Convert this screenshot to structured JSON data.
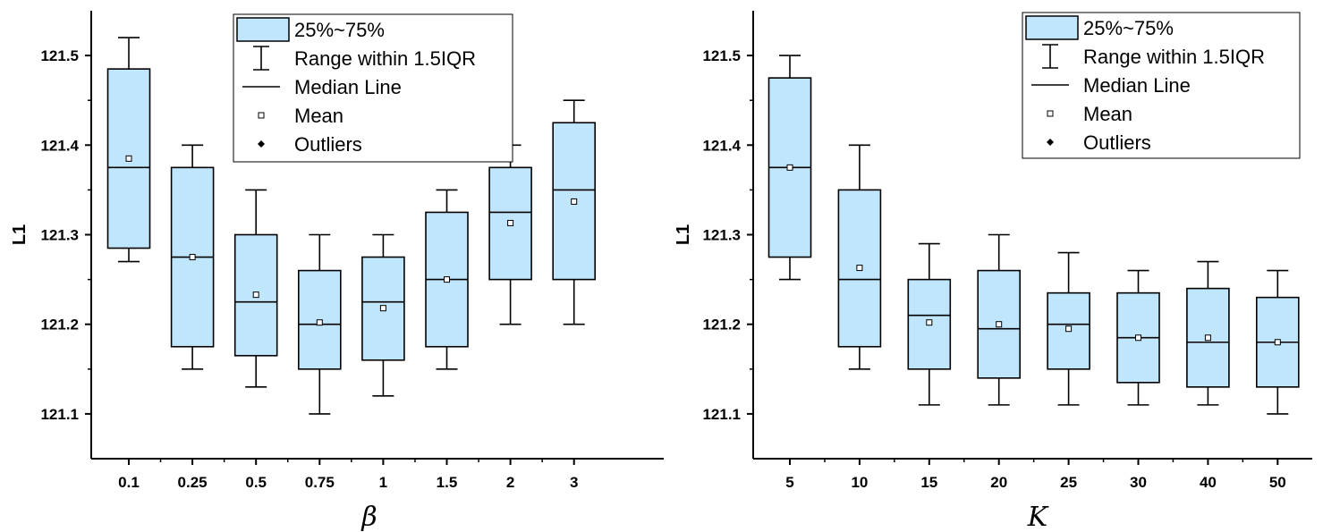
{
  "colors": {
    "box_fill": "#bfe6fd",
    "stroke": "#000000",
    "background": "#ffffff"
  },
  "chart_data": [
    {
      "type": "box",
      "title": "",
      "xlabel": "β",
      "ylabel": "L1",
      "ylim": [
        121.05,
        121.55
      ],
      "yticks": [
        121.1,
        121.2,
        121.3,
        121.4,
        121.5
      ],
      "ytick_labels": [
        "121.1",
        "121.2",
        "121.3",
        "121.4",
        "121.5"
      ],
      "categories": [
        "0.1",
        "0.25",
        "0.5",
        "0.75",
        "1",
        "1.5",
        "2",
        "3"
      ],
      "boxes": [
        {
          "whisker_low": 121.27,
          "q1": 121.285,
          "median": 121.375,
          "q3": 121.485,
          "whisker_high": 121.52,
          "mean": 121.385
        },
        {
          "whisker_low": 121.15,
          "q1": 121.175,
          "median": 121.275,
          "q3": 121.375,
          "whisker_high": 121.4,
          "mean": 121.275
        },
        {
          "whisker_low": 121.13,
          "q1": 121.165,
          "median": 121.225,
          "q3": 121.3,
          "whisker_high": 121.35,
          "mean": 121.233
        },
        {
          "whisker_low": 121.1,
          "q1": 121.15,
          "median": 121.2,
          "q3": 121.26,
          "whisker_high": 121.3,
          "mean": 121.202
        },
        {
          "whisker_low": 121.12,
          "q1": 121.16,
          "median": 121.225,
          "q3": 121.275,
          "whisker_high": 121.3,
          "mean": 121.218
        },
        {
          "whisker_low": 121.15,
          "q1": 121.175,
          "median": 121.25,
          "q3": 121.325,
          "whisker_high": 121.35,
          "mean": 121.25
        },
        {
          "whisker_low": 121.2,
          "q1": 121.25,
          "median": 121.325,
          "q3": 121.375,
          "whisker_high": 121.4,
          "mean": 121.313
        },
        {
          "whisker_low": 121.2,
          "q1": 121.25,
          "median": 121.35,
          "q3": 121.425,
          "whisker_high": 121.45,
          "mean": 121.337
        }
      ],
      "legend": {
        "placement": "top-right",
        "entries": [
          "25%~75%",
          "Range within 1.5IQR",
          "Median Line",
          "Mean",
          "Outliers"
        ]
      }
    },
    {
      "type": "box",
      "title": "",
      "xlabel": "K",
      "ylabel": "L1",
      "ylim": [
        121.05,
        121.55
      ],
      "yticks": [
        121.1,
        121.2,
        121.3,
        121.4,
        121.5
      ],
      "ytick_labels": [
        "121.1",
        "121.2",
        "121.3",
        "121.4",
        "121.5"
      ],
      "categories": [
        "5",
        "10",
        "15",
        "20",
        "25",
        "30",
        "40",
        "50"
      ],
      "boxes": [
        {
          "whisker_low": 121.25,
          "q1": 121.275,
          "median": 121.375,
          "q3": 121.475,
          "whisker_high": 121.5,
          "mean": 121.375
        },
        {
          "whisker_low": 121.15,
          "q1": 121.175,
          "median": 121.25,
          "q3": 121.35,
          "whisker_high": 121.4,
          "mean": 121.263
        },
        {
          "whisker_low": 121.11,
          "q1": 121.15,
          "median": 121.21,
          "q3": 121.25,
          "whisker_high": 121.29,
          "mean": 121.202
        },
        {
          "whisker_low": 121.11,
          "q1": 121.14,
          "median": 121.195,
          "q3": 121.26,
          "whisker_high": 121.3,
          "mean": 121.2
        },
        {
          "whisker_low": 121.11,
          "q1": 121.15,
          "median": 121.2,
          "q3": 121.235,
          "whisker_high": 121.28,
          "mean": 121.195
        },
        {
          "whisker_low": 121.11,
          "q1": 121.135,
          "median": 121.185,
          "q3": 121.235,
          "whisker_high": 121.26,
          "mean": 121.185
        },
        {
          "whisker_low": 121.11,
          "q1": 121.13,
          "median": 121.18,
          "q3": 121.24,
          "whisker_high": 121.27,
          "mean": 121.185
        },
        {
          "whisker_low": 121.1,
          "q1": 121.13,
          "median": 121.18,
          "q3": 121.23,
          "whisker_high": 121.26,
          "mean": 121.18
        }
      ],
      "legend": {
        "placement": "top-right",
        "entries": [
          "25%~75%",
          "Range within 1.5IQR",
          "Median Line",
          "Mean",
          "Outliers"
        ]
      }
    }
  ]
}
